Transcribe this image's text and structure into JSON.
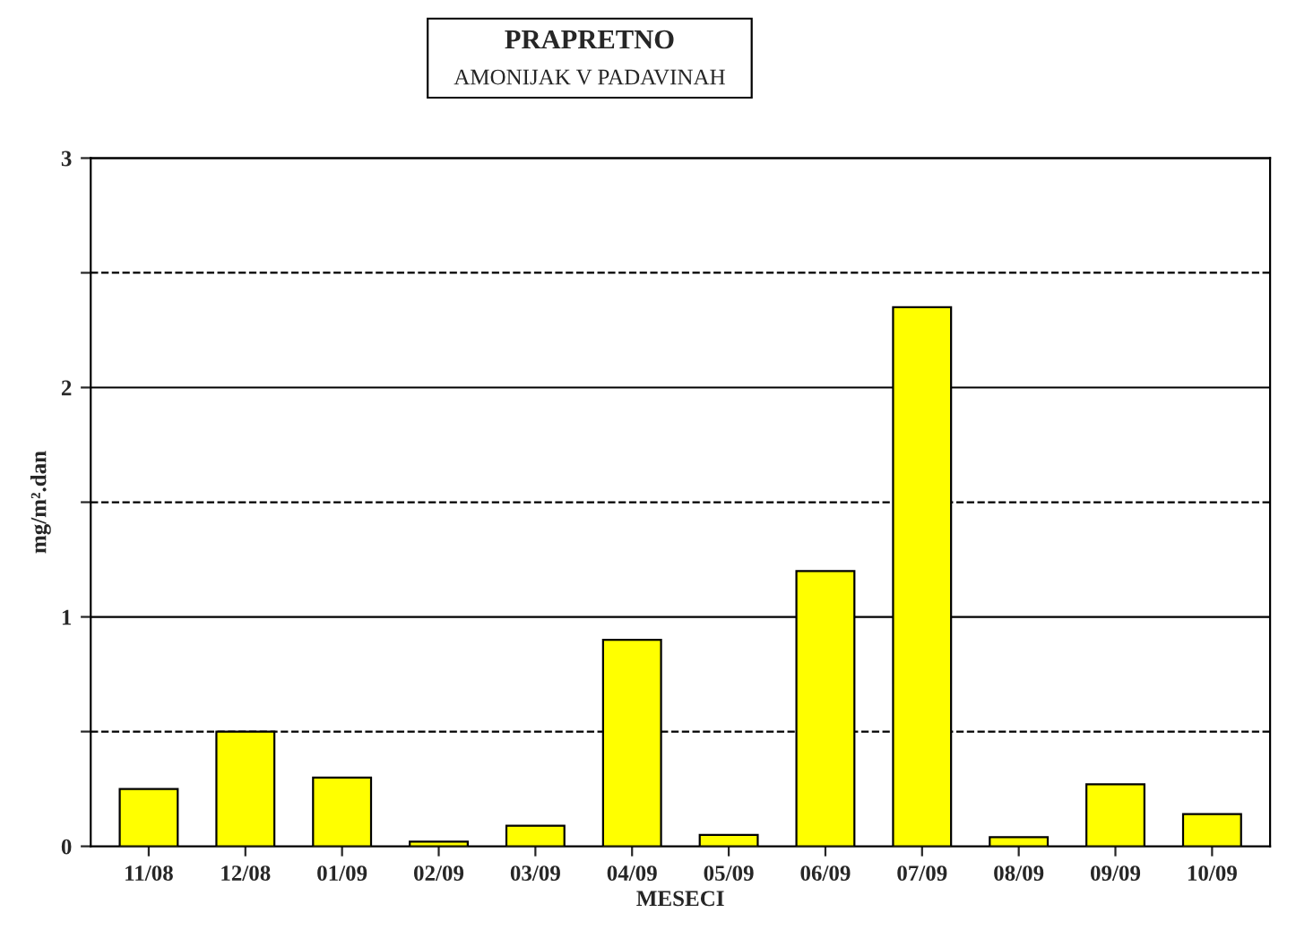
{
  "chart_data": {
    "type": "bar",
    "title": "PRAPRETNO",
    "subtitle": "AMONIJAK V PADAVINAH",
    "xlabel": "MESECI",
    "ylabel": "mg/m².dan",
    "categories": [
      "11/08",
      "12/08",
      "01/09",
      "02/09",
      "03/09",
      "04/09",
      "05/09",
      "06/09",
      "07/09",
      "08/09",
      "09/09",
      "10/09"
    ],
    "values": [
      0.25,
      0.5,
      0.3,
      0.02,
      0.09,
      0.9,
      0.05,
      1.2,
      2.35,
      0.04,
      0.27,
      0.14
    ],
    "color": "#ffff00",
    "ylim": [
      0,
      3
    ],
    "yticks": [
      0,
      {
        "value": 0.5,
        "label": null
      },
      1,
      {
        "value": 1.5,
        "label": null
      },
      2,
      {
        "value": 2.5,
        "label": null
      },
      3
    ],
    "grid": "y"
  }
}
